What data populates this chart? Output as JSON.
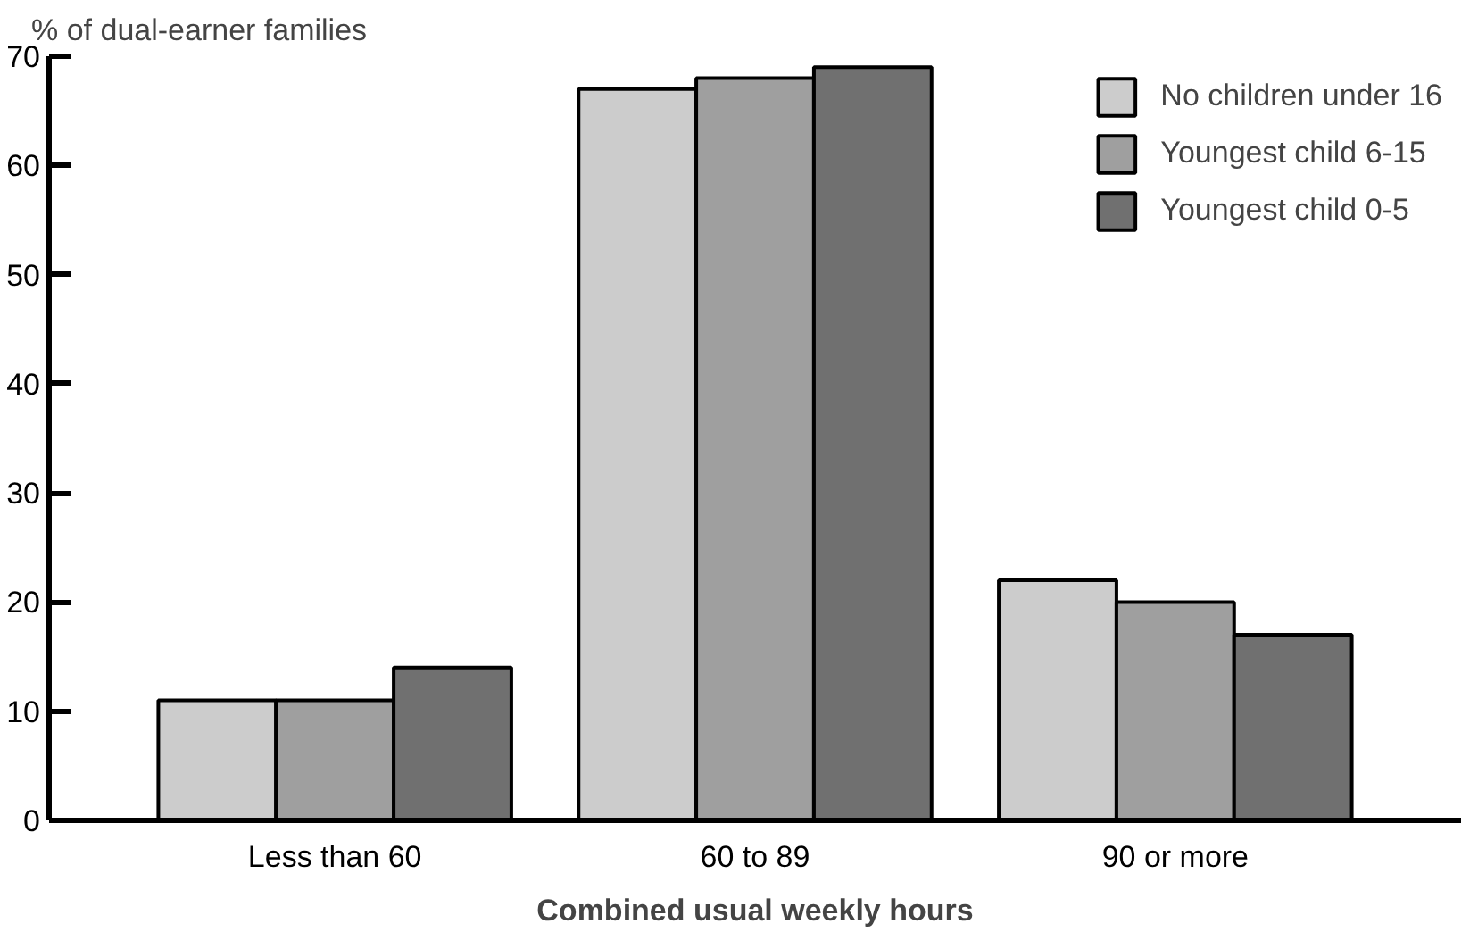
{
  "chart_data": {
    "type": "bar",
    "xlabel": "Combined usual weekly hours",
    "ylabel": "% of dual-earner families",
    "categories": [
      "Less than 60",
      "60 to 89",
      "90 or more"
    ],
    "series": [
      {
        "name": "No children under 16",
        "color": "#cccccc",
        "values": [
          11,
          67,
          22
        ]
      },
      {
        "name": "Youngest child 6-15",
        "color": "#9f9f9f",
        "values": [
          11,
          68,
          20
        ]
      },
      {
        "name": "Youngest child 0-5",
        "color": "#707070",
        "values": [
          14,
          69,
          17
        ]
      }
    ],
    "ylim": [
      0,
      70
    ],
    "yticks": [
      0,
      10,
      20,
      30,
      40,
      50,
      60,
      70
    ],
    "grid": false,
    "legend": "top right"
  }
}
